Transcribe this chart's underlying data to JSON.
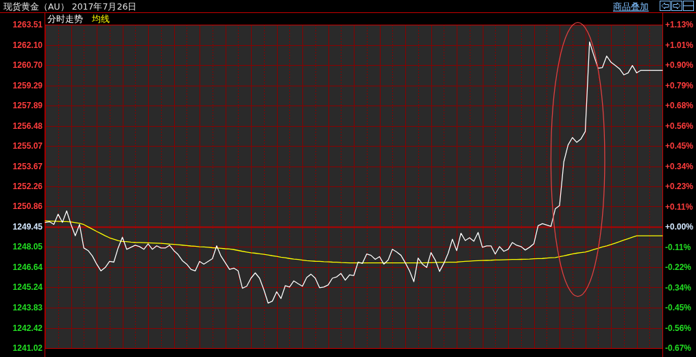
{
  "chart_data": {
    "type": "line",
    "title": "现货黄金（AU） 2017年7月26日",
    "annotations": [
      "商品叠加"
    ],
    "categories": [
      null,
      null,
      null,
      null,
      null,
      null,
      null,
      null,
      null,
      null,
      null,
      null,
      null,
      null,
      null,
      null,
      null,
      null,
      null,
      null,
      null,
      null,
      null,
      null,
      null,
      null,
      null,
      null,
      null,
      null,
      null,
      null,
      null,
      null,
      null,
      null,
      null,
      null,
      null,
      null,
      null,
      null,
      null,
      null,
      null,
      null,
      null,
      null,
      null,
      null,
      null,
      null,
      null,
      null,
      null,
      null,
      null,
      null,
      null,
      null,
      null,
      null,
      null,
      null,
      null,
      null,
      null,
      null,
      null,
      null,
      null,
      null,
      null,
      null,
      null,
      null,
      null,
      null,
      null,
      null,
      null,
      null,
      null,
      null,
      null,
      null,
      null,
      null,
      null,
      null,
      null,
      null,
      null,
      null,
      null,
      null,
      null,
      null,
      null,
      null,
      null,
      null,
      null,
      null,
      null,
      null,
      null,
      null,
      null,
      null,
      null,
      null,
      null,
      null,
      null,
      null,
      null,
      null,
      null,
      null,
      null,
      null,
      null,
      null,
      null,
      null,
      null,
      null,
      null,
      null,
      null,
      null,
      null,
      null,
      null,
      null,
      null,
      null,
      null,
      null,
      null,
      null,
      null,
      null,
      null
    ],
    "series": [
      {
        "name": "分时走势",
        "color": "#ffffff",
        "values": [
          1249.76,
          1249.81,
          1249.62,
          1250.33,
          1249.76,
          1250.56,
          1249.62,
          1248.83,
          1249.62,
          1247.98,
          1247.8,
          1247.42,
          1246.86,
          1246.39,
          1246.63,
          1247.05,
          1247.0,
          1247.98,
          1248.73,
          1247.89,
          1248.03,
          1248.17,
          1248.08,
          1247.89,
          1248.27,
          1247.89,
          1248.13,
          1247.98,
          1247.98,
          1248.17,
          1247.8,
          1247.52,
          1247.1,
          1246.86,
          1246.49,
          1246.39,
          1247.05,
          1246.86,
          1247.05,
          1247.24,
          1248.13,
          1247.42,
          1246.96,
          1246.49,
          1246.58,
          1246.39,
          1245.18,
          1245.32,
          1245.88,
          1246.25,
          1245.88,
          1245.08,
          1244.15,
          1244.29,
          1244.94,
          1244.47,
          1245.36,
          1245.27,
          1245.69,
          1245.5,
          1245.32,
          1245.93,
          1246.16,
          1245.88,
          1245.22,
          1245.27,
          1245.41,
          1245.88,
          1245.97,
          1246.21,
          1245.74,
          1246.11,
          1246.07,
          1247.0,
          1246.91,
          1247.56,
          1247.47,
          1247.19,
          1247.38,
          1246.86,
          1247.14,
          1247.89,
          1247.7,
          1247.47,
          1246.96,
          1246.39,
          1245.64,
          1247.28,
          1246.86,
          1246.63,
          1247.66,
          1247.14,
          1246.35,
          1246.91,
          1247.61,
          1248.59,
          1247.8,
          1249.01,
          1248.5,
          1248.69,
          1248.45,
          1249.06,
          1248.03,
          1248.13,
          1248.13,
          1247.56,
          1248.08,
          1247.75,
          1247.89,
          1248.36,
          1248.17,
          1248.08,
          1247.84,
          1248.03,
          1248.27,
          1249.53,
          1249.67,
          1249.58,
          1249.48,
          1250.7,
          1250.93,
          1253.98,
          1255.15,
          1255.66,
          1255.33,
          1255.57,
          1256.08,
          1262.31,
          1261.37,
          1260.48,
          1260.53,
          1261.33,
          1260.9,
          1260.67,
          1260.44,
          1260.02,
          1260.16,
          1260.67,
          1260.16,
          1260.34,
          1260.34,
          1260.34,
          1260.34,
          1260.34,
          1260.34
        ]
      },
      {
        "name": "均线",
        "color": "#ffff00",
        "values": [
          1249.86,
          1249.85,
          1249.84,
          1249.83,
          1249.82,
          1249.82,
          1249.79,
          1249.75,
          1249.7,
          1249.61,
          1249.45,
          1249.29,
          1249.13,
          1248.98,
          1248.83,
          1248.69,
          1248.59,
          1248.49,
          1248.44,
          1248.42,
          1248.39,
          1248.37,
          1248.36,
          1248.35,
          1248.34,
          1248.33,
          1248.32,
          1248.3,
          1248.28,
          1248.25,
          1248.23,
          1248.21,
          1248.18,
          1248.15,
          1248.12,
          1248.1,
          1248.07,
          1248.05,
          1248.03,
          1248.0,
          1247.98,
          1247.96,
          1247.93,
          1247.91,
          1247.87,
          1247.81,
          1247.75,
          1247.7,
          1247.65,
          1247.62,
          1247.58,
          1247.54,
          1247.49,
          1247.44,
          1247.4,
          1247.34,
          1247.3,
          1247.25,
          1247.21,
          1247.18,
          1247.14,
          1247.1,
          1247.08,
          1247.06,
          1247.05,
          1247.03,
          1247.02,
          1247.0,
          1246.99,
          1246.97,
          1246.96,
          1246.95,
          1246.95,
          1246.95,
          1246.95,
          1246.95,
          1246.95,
          1246.95,
          1246.95,
          1246.95,
          1246.95,
          1246.95,
          1246.95,
          1246.95,
          1246.95,
          1246.95,
          1246.95,
          1246.95,
          1246.95,
          1246.96,
          1246.96,
          1246.97,
          1246.98,
          1246.98,
          1246.99,
          1246.99,
          1247.0,
          1247.03,
          1247.05,
          1247.07,
          1247.09,
          1247.1,
          1247.11,
          1247.12,
          1247.13,
          1247.15,
          1247.15,
          1247.16,
          1247.17,
          1247.18,
          1247.18,
          1247.19,
          1247.2,
          1247.21,
          1247.23,
          1247.24,
          1247.25,
          1247.28,
          1247.3,
          1247.32,
          1247.37,
          1247.43,
          1247.5,
          1247.57,
          1247.62,
          1247.66,
          1247.7,
          1247.78,
          1247.87,
          1247.96,
          1248.05,
          1248.13,
          1248.22,
          1248.32,
          1248.42,
          1248.53,
          1248.63,
          1248.73,
          1248.83,
          1248.83,
          1248.83,
          1248.83,
          1248.83,
          1248.83,
          1248.83
        ]
      }
    ],
    "ylim": [
      1241.02,
      1263.51
    ],
    "yticks": [
      1241.02,
      1242.42,
      1243.83,
      1245.24,
      1246.64,
      1248.05,
      1249.45,
      1250.86,
      1252.26,
      1253.67,
      1255.07,
      1256.48,
      1257.89,
      1259.29,
      {
        "value": 1260.7,
        "label": "1260.70"
      },
      {
        "value": 1262.1,
        "label": "1262.10"
      },
      1263.51
    ],
    "y2lim": [
      -0.675,
      1.125
    ],
    "y2ticks": [
      {
        "value": -0.675,
        "label": "-0.67%"
      },
      {
        "value": -0.5625,
        "label": "-0.56%"
      },
      {
        "value": -0.45,
        "label": "-0.45%"
      },
      {
        "value": -0.3375,
        "label": "-0.34%"
      },
      {
        "value": -0.225,
        "label": "-0.22%"
      },
      {
        "value": -0.1125,
        "label": "-0.11%"
      },
      {
        "value": 0,
        "label": "+0.00%"
      },
      {
        "value": 0.1125,
        "label": "+0.11%"
      },
      {
        "value": 0.225,
        "label": "+0.23%"
      },
      {
        "value": 0.3375,
        "label": "+0.34%"
      },
      {
        "value": 0.45,
        "label": "+0.45%"
      },
      {
        "value": 0.5625,
        "label": "+0.56%"
      },
      {
        "value": 0.675,
        "label": "+0.68%"
      },
      {
        "value": 0.7875,
        "label": "+0.79%"
      },
      {
        "value": 0.9,
        "label": "+0.90%"
      },
      {
        "value": 1.0125,
        "label": "+1.01%"
      },
      {
        "value": 1.125,
        "label": "+1.13%"
      }
    ],
    "ref_lines": [
      {
        "axis": "y",
        "value": 1249.45,
        "color": "#b40000"
      }
    ],
    "grid": true,
    "legend": "top left"
  }
}
